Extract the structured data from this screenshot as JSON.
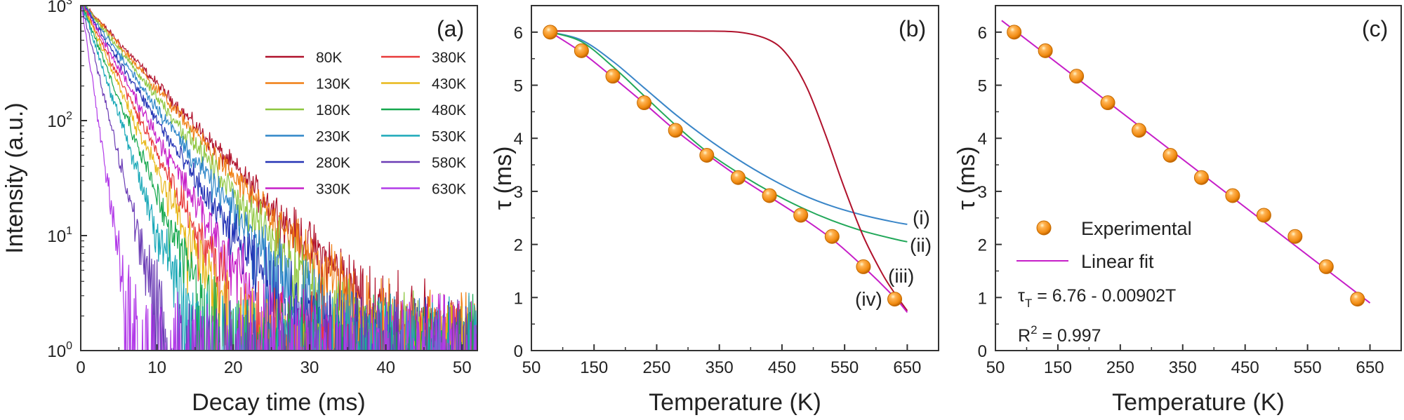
{
  "chart_data": [
    {
      "panel": "(a)",
      "type": "line",
      "xlabel": "Decay time (ms)",
      "ylabel": "Intensity (a.u.)",
      "xlim": [
        0,
        52
      ],
      "ylim": [
        1,
        1000
      ],
      "yscale": "log",
      "x_ticks": [
        0,
        10,
        20,
        30,
        40,
        50
      ],
      "y_ticks": [
        {
          "base": "10",
          "exp": "0"
        },
        {
          "base": "10",
          "exp": "1"
        },
        {
          "base": "10",
          "exp": "2"
        },
        {
          "base": "10",
          "exp": "3"
        }
      ],
      "legend_placement": "top-right",
      "series": [
        {
          "name": "80K",
          "color": "#b0122c",
          "tau": 6.0
        },
        {
          "name": "130K",
          "color": "#f07f14",
          "tau": 5.65
        },
        {
          "name": "180K",
          "color": "#8ec63f",
          "tau": 5.17
        },
        {
          "name": "230K",
          "color": "#2e86c8",
          "tau": 4.67
        },
        {
          "name": "280K",
          "color": "#2433b5",
          "tau": 4.15
        },
        {
          "name": "330K",
          "color": "#c61ec8",
          "tau": 3.68
        },
        {
          "name": "380K",
          "color": "#e83a3a",
          "tau": 3.26
        },
        {
          "name": "430K",
          "color": "#e8b81a",
          "tau": 2.92
        },
        {
          "name": "480K",
          "color": "#16a84e",
          "tau": 2.55
        },
        {
          "name": "530K",
          "color": "#1aa8b8",
          "tau": 2.15
        },
        {
          "name": "580K",
          "color": "#6b3cb5",
          "tau": 1.58
        },
        {
          "name": "630K",
          "color": "#b23be8",
          "tau": 0.97
        }
      ]
    },
    {
      "panel": "(b)",
      "type": "scatter",
      "xlabel": "Temperature (K)",
      "ylabel": "τ (ms)",
      "xlim": [
        50,
        700
      ],
      "ylim": [
        0,
        6.5
      ],
      "x_ticks": [
        50,
        150,
        250,
        350,
        450,
        550,
        650
      ],
      "y_ticks": [
        0,
        1,
        2,
        3,
        4,
        5,
        6
      ],
      "experimental": {
        "x": [
          80,
          130,
          180,
          230,
          280,
          330,
          380,
          430,
          480,
          530,
          580,
          630
        ],
        "y": [
          6.0,
          5.65,
          5.17,
          4.67,
          4.15,
          3.68,
          3.26,
          2.92,
          2.55,
          2.15,
          1.58,
          0.97
        ]
      },
      "curves": [
        {
          "name": "(i)",
          "color": "#3a86c8",
          "x": [
            80,
            130,
            180,
            230,
            280,
            330,
            380,
            430,
            480,
            530,
            580,
            630,
            650
          ],
          "y": [
            6.0,
            5.85,
            5.45,
            4.95,
            4.45,
            4.0,
            3.6,
            3.25,
            2.95,
            2.72,
            2.55,
            2.42,
            2.38
          ]
        },
        {
          "name": "(ii)",
          "color": "#22a85a",
          "x": [
            80,
            130,
            180,
            230,
            280,
            330,
            380,
            430,
            480,
            530,
            580,
            630,
            650
          ],
          "y": [
            6.0,
            5.82,
            5.35,
            4.8,
            4.25,
            3.75,
            3.35,
            3.0,
            2.7,
            2.45,
            2.25,
            2.1,
            2.05
          ]
        },
        {
          "name": "(iii)",
          "color": "#b0122c",
          "x": [
            80,
            200,
            300,
            380,
            430,
            460,
            490,
            520,
            550,
            580,
            610,
            630,
            650
          ],
          "y": [
            6.02,
            6.02,
            6.02,
            6.0,
            5.85,
            5.55,
            4.95,
            4.05,
            3.05,
            2.15,
            1.45,
            1.08,
            0.75
          ]
        },
        {
          "name": "(iv)",
          "color": "#c61ec8",
          "x": [
            80,
            130,
            180,
            230,
            280,
            330,
            380,
            430,
            480,
            530,
            580,
            630,
            650
          ],
          "y": [
            6.0,
            5.62,
            5.15,
            4.66,
            4.15,
            3.7,
            3.28,
            2.9,
            2.52,
            2.1,
            1.58,
            1.0,
            0.72
          ]
        }
      ]
    },
    {
      "panel": "(c)",
      "type": "scatter",
      "xlabel": "Temperature (K)",
      "ylabel": "τ (ms)",
      "xlim": [
        50,
        700
      ],
      "ylim": [
        0,
        6.5
      ],
      "x_ticks": [
        50,
        150,
        250,
        350,
        450,
        550,
        650
      ],
      "y_ticks": [
        0,
        1,
        2,
        3,
        4,
        5,
        6
      ],
      "experimental": {
        "x": [
          80,
          130,
          180,
          230,
          280,
          330,
          380,
          430,
          480,
          530,
          580,
          630
        ],
        "y": [
          6.0,
          5.65,
          5.17,
          4.67,
          4.15,
          3.68,
          3.26,
          2.92,
          2.55,
          2.15,
          1.58,
          0.97
        ]
      },
      "fit": {
        "intercept": 6.76,
        "slope": -0.00902,
        "x_range": [
          60,
          650
        ],
        "color": "#c61ec8"
      },
      "legend": {
        "experimental": "Experimental",
        "fit": "Linear fit"
      },
      "equation": {
        "tau": "τ",
        "sub": "T",
        "rest": " = 6.76 - 0.00902T"
      },
      "r2": {
        "r": "R",
        "sup": "2",
        "rest": " = 0.997"
      }
    }
  ]
}
